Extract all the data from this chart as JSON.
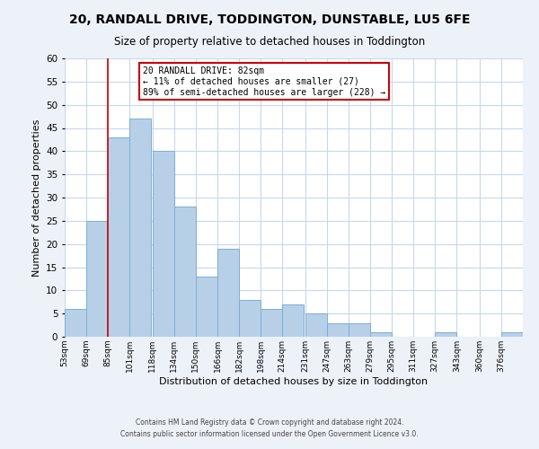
{
  "title": "20, RANDALL DRIVE, TODDINGTON, DUNSTABLE, LU5 6FE",
  "subtitle": "Size of property relative to detached houses in Toddington",
  "xlabel": "Distribution of detached houses by size in Toddington",
  "ylabel": "Number of detached properties",
  "bin_labels": [
    "53sqm",
    "69sqm",
    "85sqm",
    "101sqm",
    "118sqm",
    "134sqm",
    "150sqm",
    "166sqm",
    "182sqm",
    "198sqm",
    "214sqm",
    "231sqm",
    "247sqm",
    "263sqm",
    "279sqm",
    "295sqm",
    "311sqm",
    "327sqm",
    "343sqm",
    "360sqm",
    "376sqm"
  ],
  "bin_edges": [
    53,
    69,
    85,
    101,
    118,
    134,
    150,
    166,
    182,
    198,
    214,
    231,
    247,
    263,
    279,
    295,
    311,
    327,
    343,
    360,
    376
  ],
  "bar_heights": [
    6,
    25,
    43,
    47,
    40,
    28,
    13,
    19,
    8,
    6,
    7,
    5,
    3,
    3,
    1,
    0,
    0,
    1,
    0,
    0,
    1
  ],
  "bar_color": "#b8cfe8",
  "bar_edge_color": "#7aafd4",
  "vline_x": 85,
  "vline_color": "#cc0000",
  "annotation_title": "20 RANDALL DRIVE: 82sqm",
  "annotation_line1": "← 11% of detached houses are smaller (27)",
  "annotation_line2": "89% of semi-detached houses are larger (228) →",
  "annotation_box_color": "#ffffff",
  "annotation_box_edge_color": "#cc0000",
  "ylim": [
    0,
    60
  ],
  "yticks": [
    0,
    5,
    10,
    15,
    20,
    25,
    30,
    35,
    40,
    45,
    50,
    55,
    60
  ],
  "footer1": "Contains HM Land Registry data © Crown copyright and database right 2024.",
  "footer2": "Contains public sector information licensed under the Open Government Licence v3.0.",
  "bg_color": "#edf2f9",
  "plot_bg_color": "#ffffff"
}
